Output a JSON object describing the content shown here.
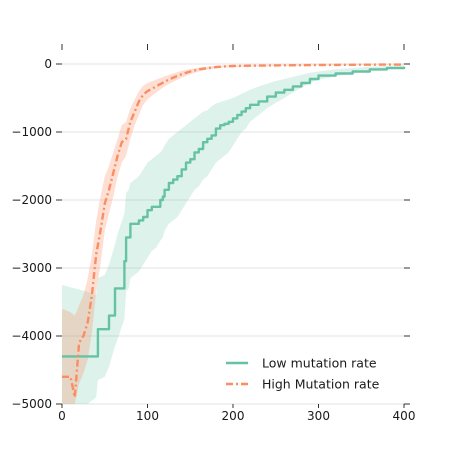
{
  "chart_data": {
    "type": "line",
    "title": "",
    "xlabel": "",
    "ylabel": "",
    "xlim": [
      0,
      400
    ],
    "ylim": [
      -5000,
      0
    ],
    "x_ticks": [
      "0",
      "100",
      "200",
      "300",
      "400"
    ],
    "y_ticks": [
      "0",
      "−1000",
      "−2000",
      "−3000",
      "−4000",
      "−5000"
    ],
    "grid": "horizontal",
    "legend_position": "lower-right",
    "series": [
      {
        "name": "Low mutation rate",
        "color": "#66c2a5",
        "style": "solid",
        "x": [
          0,
          15,
          30,
          40,
          42,
          50,
          55,
          62,
          65,
          73,
          75,
          78,
          80,
          90,
          95,
          100,
          105,
          110,
          115,
          118,
          120,
          125,
          130,
          135,
          140,
          145,
          150,
          155,
          160,
          165,
          170,
          175,
          180,
          185,
          190,
          195,
          200,
          205,
          210,
          215,
          220,
          230,
          240,
          250,
          260,
          270,
          280,
          290,
          300,
          320,
          340,
          360,
          380,
          400
        ],
        "y": [
          -4300,
          -4300,
          -4300,
          -4300,
          -3900,
          -3900,
          -3700,
          -3300,
          -3300,
          -2900,
          -2550,
          -2550,
          -2350,
          -2300,
          -2250,
          -2150,
          -2100,
          -2100,
          -2000,
          -1950,
          -1850,
          -1750,
          -1700,
          -1650,
          -1550,
          -1450,
          -1400,
          -1300,
          -1250,
          -1150,
          -1100,
          -1050,
          -950,
          -900,
          -880,
          -850,
          -800,
          -750,
          -700,
          -650,
          -600,
          -550,
          -480,
          -420,
          -380,
          -330,
          -280,
          -220,
          -170,
          -140,
          -110,
          -80,
          -60,
          -40
        ],
        "band_low": [
          -5000,
          -5000,
          -5000,
          -4900,
          -4650,
          -4600,
          -4450,
          -4150,
          -4050,
          -3750,
          -3350,
          -3300,
          -3150,
          -3050,
          -2950,
          -2850,
          -2750,
          -2700,
          -2600,
          -2550,
          -2450,
          -2350,
          -2300,
          -2250,
          -2150,
          -2050,
          -1950,
          -1850,
          -1800,
          -1700,
          -1650,
          -1550,
          -1450,
          -1400,
          -1350,
          -1300,
          -1200,
          -1100,
          -1000,
          -950,
          -850,
          -750,
          -650,
          -570,
          -500,
          -420,
          -350,
          -280,
          -230,
          -180,
          -140,
          -100,
          -80,
          -60
        ],
        "band_high": [
          -3250,
          -3300,
          -3350,
          -3400,
          -3150,
          -3100,
          -2950,
          -2650,
          -2500,
          -2200,
          -1900,
          -1850,
          -1750,
          -1650,
          -1550,
          -1450,
          -1400,
          -1350,
          -1300,
          -1250,
          -1200,
          -1100,
          -1050,
          -1000,
          -950,
          -900,
          -850,
          -800,
          -750,
          -700,
          -680,
          -620,
          -580,
          -560,
          -540,
          -520,
          -500,
          -470,
          -440,
          -410,
          -380,
          -330,
          -290,
          -250,
          -220,
          -190,
          -160,
          -130,
          -110,
          -80,
          -60,
          -40,
          -30,
          -20
        ]
      },
      {
        "name": "High Mutation rate",
        "color": "#fc8d62",
        "style": "dashed",
        "x": [
          0,
          10,
          15,
          20,
          25,
          30,
          35,
          40,
          45,
          50,
          55,
          60,
          65,
          70,
          75,
          80,
          85,
          90,
          95,
          100,
          110,
          120,
          130,
          140,
          150,
          160,
          170,
          180,
          190,
          200,
          220,
          250,
          300,
          350,
          400
        ],
        "y": [
          -4600,
          -4600,
          -4900,
          -4100,
          -4000,
          -3800,
          -3400,
          -2800,
          -2450,
          -2050,
          -1850,
          -1600,
          -1350,
          -1150,
          -1100,
          -850,
          -700,
          -550,
          -450,
          -400,
          -330,
          -260,
          -200,
          -150,
          -110,
          -80,
          -60,
          -45,
          -35,
          -30,
          -25,
          -20,
          -15,
          -10,
          -8
        ],
        "band_low": [
          -5000,
          -5000,
          -5000,
          -4700,
          -4550,
          -4350,
          -3950,
          -3350,
          -2950,
          -2450,
          -2200,
          -1950,
          -1650,
          -1450,
          -1350,
          -1100,
          -900,
          -750,
          -600,
          -520,
          -420,
          -330,
          -260,
          -200,
          -150,
          -110,
          -85,
          -65,
          -50,
          -45,
          -38,
          -30,
          -22,
          -15,
          -12
        ],
        "band_high": [
          -3600,
          -3650,
          -3700,
          -3550,
          -3400,
          -3150,
          -2800,
          -2300,
          -1950,
          -1650,
          -1500,
          -1300,
          -1100,
          -900,
          -850,
          -650,
          -520,
          -400,
          -320,
          -280,
          -230,
          -180,
          -140,
          -100,
          -75,
          -55,
          -40,
          -30,
          -22,
          -20,
          -15,
          -12,
          -8,
          -5,
          -3
        ]
      }
    ]
  }
}
